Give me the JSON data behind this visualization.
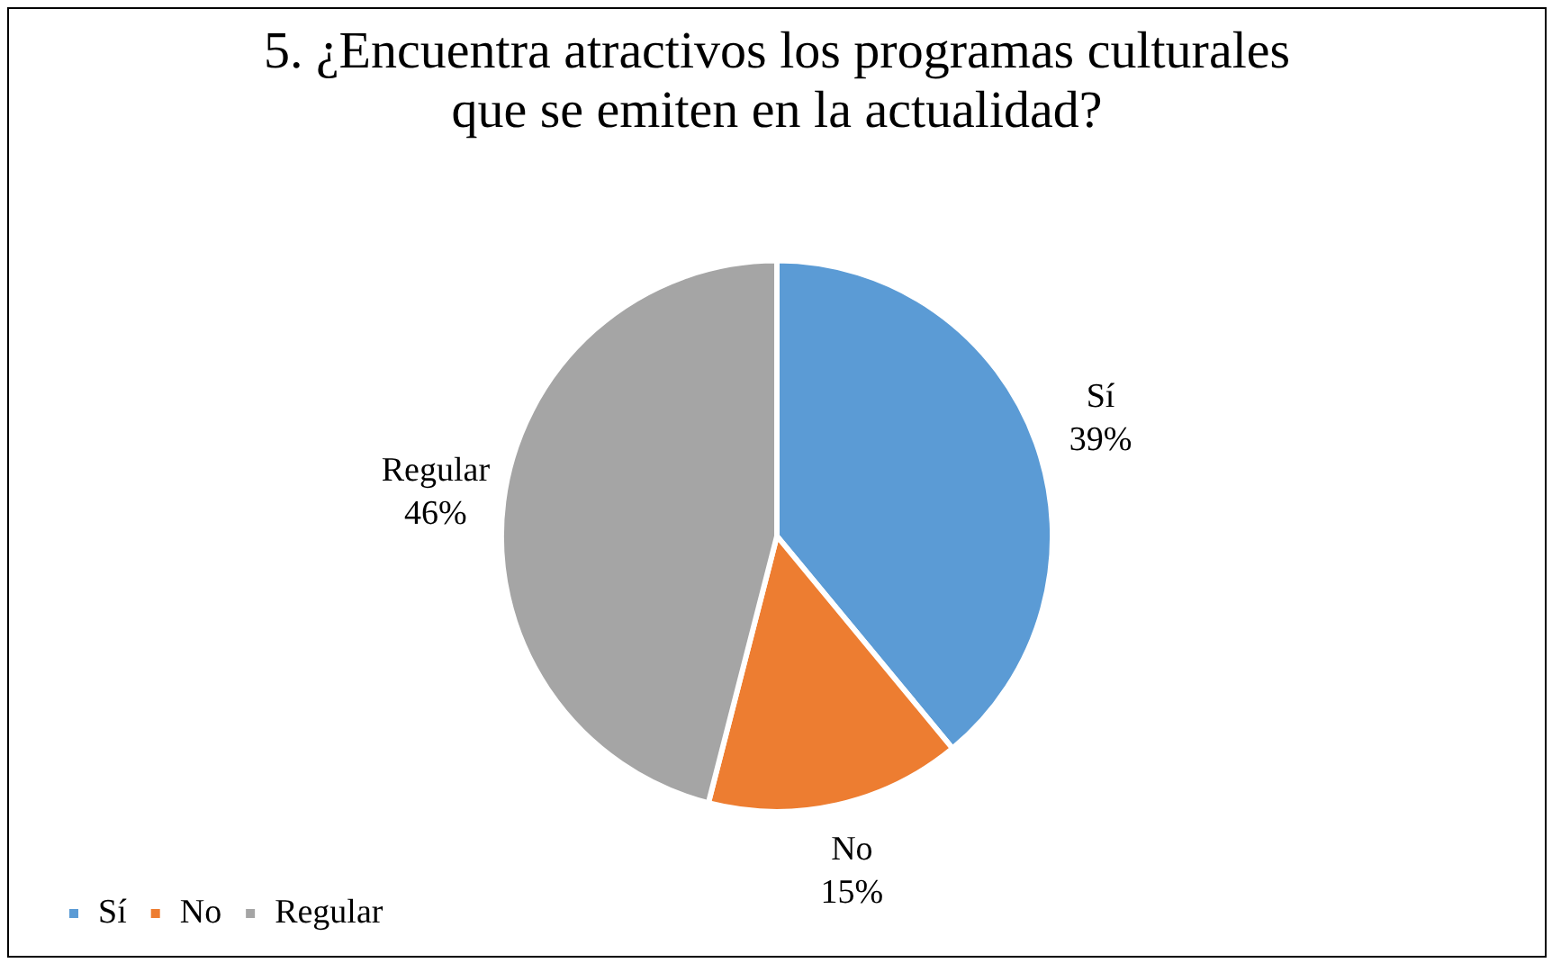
{
  "chart_data": {
    "type": "pie",
    "title": "5. ¿Encuentra atractivos los programas culturales\nque se emiten en la actualidad?",
    "categories": [
      "Sí",
      "No",
      "Regular"
    ],
    "values": [
      39,
      15,
      46
    ],
    "value_labels": [
      "39%",
      "15%",
      "46%"
    ],
    "colors": [
      "#5b9bd5",
      "#ed7d31",
      "#a5a5a5"
    ],
    "legend": "bottom left"
  }
}
